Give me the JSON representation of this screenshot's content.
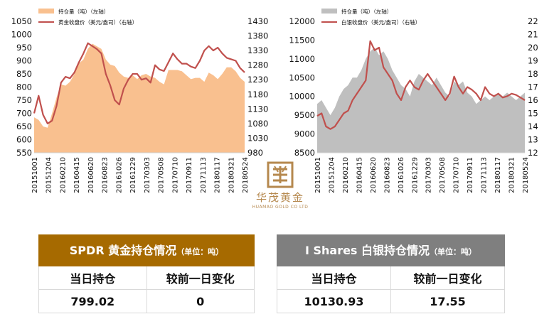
{
  "chart_data": [
    {
      "type": "area",
      "legend": [
        "持仓量（吨）（左轴）",
        "黄金收盘价（美元/盎司）（右轴）"
      ],
      "legend_position": "top-left",
      "x_tick_labels": [
        "20151001",
        "20151204",
        "20160210",
        "20160415",
        "20160620",
        "20160823",
        "20161026",
        "20161229",
        "20170303",
        "20170508",
        "20170710",
        "20170911",
        "20171113",
        "20180117",
        "20180321",
        "20180524"
      ],
      "y_left": {
        "ticks": [
          550,
          600,
          650,
          700,
          750,
          800,
          850,
          900,
          950,
          1000,
          1050
        ],
        "range": [
          550,
          1050
        ]
      },
      "y_right": {
        "ticks": [
          980,
          1030,
          1080,
          1130,
          1180,
          1230,
          1280,
          1330,
          1380,
          1430
        ],
        "range": [
          980,
          1430
        ]
      },
      "grid": false,
      "series": [
        {
          "name": "持仓量（吨）（左轴）",
          "kind": "area",
          "axis": "left",
          "color": "#f9c08f",
          "values": [
            685,
            675,
            650,
            645,
            700,
            760,
            810,
            805,
            820,
            850,
            890,
            905,
            945,
            965,
            955,
            945,
            905,
            885,
            880,
            855,
            840,
            835,
            845,
            830,
            845,
            850,
            840,
            835,
            820,
            810,
            865,
            865,
            865,
            860,
            845,
            830,
            835,
            835,
            820,
            855,
            845,
            830,
            850,
            875,
            875,
            860,
            835,
            820
          ]
        },
        {
          "name": "黄金收盘价（美元/盎司）（右轴）",
          "kind": "line",
          "axis": "right",
          "color": "#c0504d",
          "values": [
            1115,
            1175,
            1110,
            1080,
            1090,
            1140,
            1220,
            1240,
            1235,
            1255,
            1290,
            1320,
            1355,
            1345,
            1335,
            1320,
            1250,
            1210,
            1160,
            1145,
            1200,
            1230,
            1250,
            1250,
            1230,
            1235,
            1220,
            1280,
            1265,
            1260,
            1290,
            1320,
            1300,
            1285,
            1285,
            1275,
            1270,
            1295,
            1330,
            1345,
            1330,
            1340,
            1320,
            1305,
            1300,
            1295,
            1270,
            1255
          ]
        }
      ]
    },
    {
      "type": "area",
      "legend": [
        "持仓量（吨）（左轴）",
        "白银收盘价（美元/盎司）（右轴）"
      ],
      "legend_position": "top-left",
      "x_tick_labels": [
        "20151001",
        "20151204",
        "20160210",
        "20160415",
        "20160620",
        "20160823",
        "20161026",
        "20161229",
        "20170303",
        "20170508",
        "20170710",
        "20170911",
        "20171113",
        "20180117",
        "20180321",
        "20180524"
      ],
      "y_left": {
        "ticks": [
          8500,
          9000,
          9500,
          10000,
          10500,
          11000,
          11500,
          12000
        ],
        "range": [
          8500,
          12000
        ]
      },
      "y_right": {
        "ticks": [
          12,
          13,
          14,
          15,
          16,
          17,
          18,
          19,
          20,
          21,
          22
        ],
        "range": [
          12,
          22
        ]
      },
      "grid": false,
      "series": [
        {
          "name": "持仓量（吨）（左轴）",
          "kind": "area",
          "axis": "left",
          "color": "#bfbfbf",
          "values": [
            9800,
            9900,
            9700,
            9500,
            9700,
            10000,
            10200,
            10300,
            10500,
            10500,
            10700,
            11000,
            11200,
            11300,
            11100,
            11200,
            11000,
            10700,
            10500,
            10300,
            10200,
            10000,
            10400,
            10600,
            10500,
            10400,
            10300,
            10500,
            10300,
            10100,
            10000,
            10400,
            10300,
            10400,
            10100,
            10000,
            9800,
            9900,
            10000,
            9900,
            10000,
            10100,
            10000,
            10100,
            10000,
            9900,
            10000,
            10100
          ]
        },
        {
          "name": "白银收盘价（美元/盎司）（右轴）",
          "kind": "line",
          "axis": "right",
          "color": "#c0504d",
          "values": [
            14.8,
            15.0,
            14.0,
            13.8,
            14.0,
            14.5,
            15.0,
            15.2,
            16.0,
            16.5,
            17.0,
            17.5,
            20.5,
            19.8,
            20.0,
            18.5,
            18.0,
            17.5,
            16.5,
            16.0,
            17.0,
            17.5,
            17.0,
            16.8,
            17.5,
            18.0,
            17.5,
            17.0,
            16.5,
            16.0,
            16.5,
            17.8,
            17.0,
            16.5,
            17.0,
            16.8,
            16.5,
            16.0,
            17.0,
            16.5,
            16.3,
            16.5,
            16.2,
            16.3,
            16.5,
            16.4,
            16.2,
            16.0
          ]
        }
      ]
    }
  ],
  "logo": {
    "cn": "华茂黄金",
    "en": "HUAMAO GOLD CO LTD"
  },
  "gold_table": {
    "title": "SPDR 黄金持仓情况",
    "unit": "（单位：吨）",
    "col1": "当日持仓",
    "col2": "较前一日变化",
    "val1": "799.02",
    "val2": "0"
  },
  "silver_table": {
    "title": "I Shares 白银持仓情况",
    "unit": "（单位：吨）",
    "col1": "当日持仓",
    "col2": "较前一日变化",
    "val1": "10130.93",
    "val2": "17.55"
  }
}
